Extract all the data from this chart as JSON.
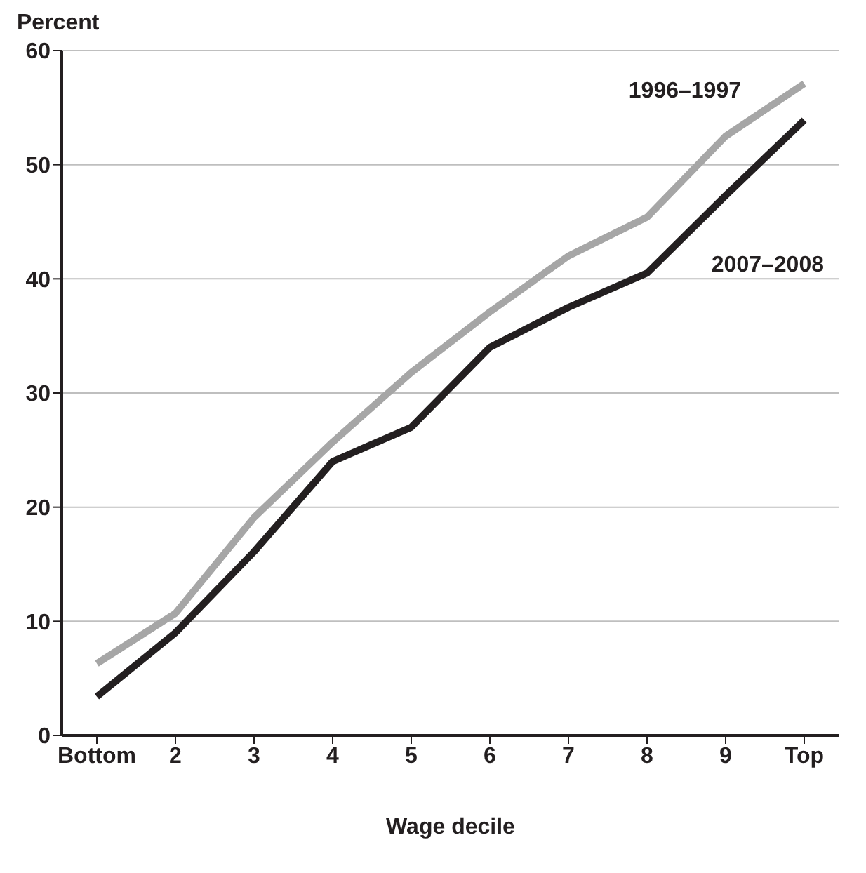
{
  "chart_data": {
    "type": "line",
    "xlabel": "Wage decile",
    "ylabel": "Percent",
    "categories": [
      "Bottom",
      "2",
      "3",
      "4",
      "5",
      "6",
      "7",
      "8",
      "9",
      "Top"
    ],
    "series": [
      {
        "name": "1996–1997",
        "color": "#a6a6a6",
        "values": [
          6.3,
          10.7,
          19.1,
          25.7,
          31.8,
          37.1,
          42.0,
          45.4,
          52.5,
          57.1
        ]
      },
      {
        "name": "2007–2008",
        "color": "#231f20",
        "values": [
          3.4,
          9.0,
          16.1,
          24.0,
          27.0,
          34.0,
          37.5,
          40.5,
          47.3,
          53.9
        ]
      }
    ],
    "ylim": [
      0,
      60
    ],
    "yticks": [
      0,
      10,
      20,
      30,
      40,
      50,
      60
    ],
    "grid": "y",
    "legend": false,
    "marker": "none",
    "line_style": "solid"
  }
}
